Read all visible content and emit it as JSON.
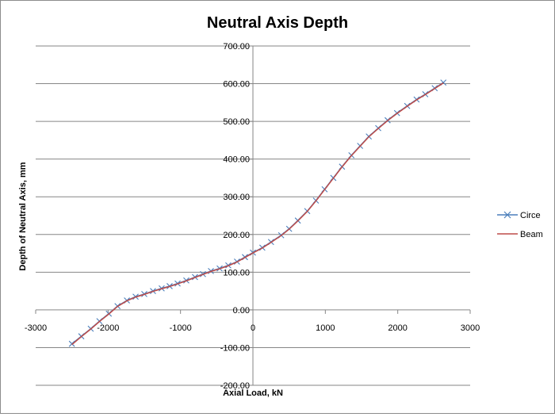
{
  "chart_data": {
    "type": "line",
    "title": "Neutral Axis Depth",
    "xlabel": "Axial Load, kN",
    "ylabel": "Depth of Neutral Axis, mm",
    "xlim": [
      -3000,
      3000
    ],
    "ylim": [
      -200,
      700
    ],
    "x_ticks": [
      "-3000",
      "-2000",
      "-1000",
      "0",
      "1000",
      "2000",
      "3000"
    ],
    "y_ticks": [
      "-200.00",
      "-100.00",
      "0.00",
      "100.00",
      "200.00",
      "300.00",
      "400.00",
      "500.00",
      "600.00",
      "700.00"
    ],
    "grid": "horizontal",
    "legend_position": "right",
    "series": [
      {
        "name": "Circe",
        "color": "#4a7ebb",
        "marker": "x",
        "points": [
          [
            -2500,
            -90
          ],
          [
            -2370,
            -70
          ],
          [
            -2240,
            -50
          ],
          [
            -2120,
            -30
          ],
          [
            -1990,
            -10
          ],
          [
            -1870,
            10
          ],
          [
            -1740,
            25
          ],
          [
            -1620,
            35
          ],
          [
            -1500,
            42
          ],
          [
            -1380,
            50
          ],
          [
            -1260,
            57
          ],
          [
            -1150,
            63
          ],
          [
            -1040,
            70
          ],
          [
            -920,
            78
          ],
          [
            -800,
            87
          ],
          [
            -690,
            95
          ],
          [
            -580,
            103
          ],
          [
            -460,
            110
          ],
          [
            -340,
            118
          ],
          [
            -220,
            128
          ],
          [
            -110,
            140
          ],
          [
            0,
            152
          ],
          [
            130,
            165
          ],
          [
            250,
            180
          ],
          [
            390,
            198
          ],
          [
            500,
            215
          ],
          [
            620,
            237
          ],
          [
            750,
            262
          ],
          [
            870,
            290
          ],
          [
            990,
            320
          ],
          [
            1110,
            350
          ],
          [
            1230,
            380
          ],
          [
            1360,
            410
          ],
          [
            1480,
            435
          ],
          [
            1600,
            460
          ],
          [
            1730,
            482
          ],
          [
            1860,
            503
          ],
          [
            1990,
            522
          ],
          [
            2130,
            541
          ],
          [
            2260,
            558
          ],
          [
            2380,
            572
          ],
          [
            2510,
            588
          ],
          [
            2630,
            603
          ]
        ]
      },
      {
        "name": "Beam",
        "color": "#be4b48",
        "marker": "none",
        "points": [
          [
            -2500,
            -92
          ],
          [
            -2370,
            -71
          ],
          [
            -2240,
            -51
          ],
          [
            -2120,
            -31
          ],
          [
            -1990,
            -11
          ],
          [
            -1870,
            9
          ],
          [
            -1740,
            24
          ],
          [
            -1620,
            34
          ],
          [
            -1500,
            41
          ],
          [
            -1380,
            49
          ],
          [
            -1260,
            56
          ],
          [
            -1150,
            62
          ],
          [
            -1040,
            69
          ],
          [
            -920,
            77
          ],
          [
            -800,
            86
          ],
          [
            -690,
            94
          ],
          [
            -580,
            102
          ],
          [
            -460,
            109
          ],
          [
            -340,
            117
          ],
          [
            -220,
            127
          ],
          [
            -110,
            139
          ],
          [
            0,
            151
          ],
          [
            130,
            164
          ],
          [
            250,
            179
          ],
          [
            390,
            197
          ],
          [
            500,
            214
          ],
          [
            620,
            236
          ],
          [
            750,
            261
          ],
          [
            870,
            289
          ],
          [
            990,
            319
          ],
          [
            1110,
            349
          ],
          [
            1230,
            379
          ],
          [
            1360,
            409
          ],
          [
            1480,
            434
          ],
          [
            1600,
            459
          ],
          [
            1730,
            481
          ],
          [
            1860,
            502
          ],
          [
            1990,
            521
          ],
          [
            2130,
            540
          ],
          [
            2260,
            557
          ],
          [
            2380,
            571
          ],
          [
            2510,
            587
          ],
          [
            2630,
            602
          ]
        ]
      }
    ]
  }
}
